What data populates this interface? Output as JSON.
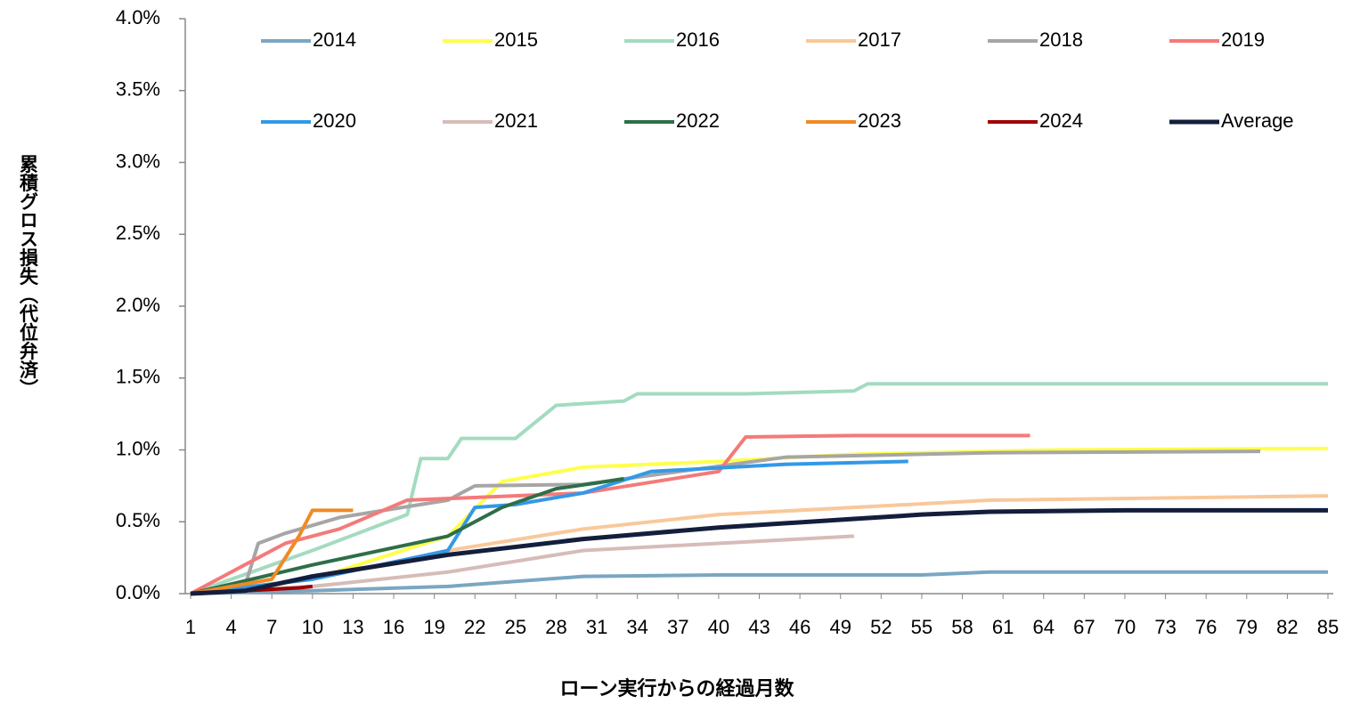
{
  "chart_data": {
    "type": "line",
    "ylabel": "累積グロス損失（代位弁済）",
    "xlabel": "ローン実行からの経過月数",
    "xlim": [
      1,
      85
    ],
    "xticks": [
      1,
      4,
      7,
      10,
      13,
      16,
      19,
      22,
      25,
      28,
      31,
      34,
      37,
      40,
      43,
      46,
      49,
      52,
      55,
      58,
      61,
      64,
      67,
      70,
      73,
      76,
      79,
      82,
      85
    ],
    "ylim": [
      0,
      4
    ],
    "yticks": [
      {
        "value": 0,
        "label": "0.0%"
      },
      {
        "value": 0.5,
        "label": "0.5%"
      },
      {
        "value": 1,
        "label": "1.0%"
      },
      {
        "value": 1.5,
        "label": "1.5%"
      },
      {
        "value": 2,
        "label": "2.0%"
      },
      {
        "value": 2.5,
        "label": "2.5%"
      },
      {
        "value": 3,
        "label": "3.0%"
      },
      {
        "value": 3.5,
        "label": "3.5%"
      },
      {
        "value": 4,
        "label": "4.0%"
      }
    ],
    "series": [
      {
        "name": "2014",
        "color": "#7aa6c2",
        "x": [
          1,
          10,
          20,
          30,
          40,
          55,
          60,
          85
        ],
        "values": [
          0,
          0.02,
          0.05,
          0.12,
          0.13,
          0.13,
          0.15,
          0.15
        ]
      },
      {
        "name": "2015",
        "color": "#ffff4d",
        "x": [
          1,
          10,
          20,
          24,
          30,
          40,
          50,
          65,
          85
        ],
        "values": [
          0,
          0.1,
          0.4,
          0.78,
          0.88,
          0.92,
          0.97,
          1.0,
          1.01
        ]
      },
      {
        "name": "2016",
        "color": "#a3dbc0",
        "x": [
          1,
          10,
          17,
          18,
          20,
          21,
          25,
          28,
          33,
          34,
          42,
          50,
          51,
          85
        ],
        "values": [
          0,
          0.3,
          0.55,
          0.94,
          0.94,
          1.08,
          1.08,
          1.31,
          1.34,
          1.39,
          1.39,
          1.41,
          1.46,
          1.46
        ]
      },
      {
        "name": "2017",
        "color": "#f9c89a",
        "x": [
          1,
          10,
          20,
          30,
          40,
          60,
          85
        ],
        "values": [
          0,
          0.1,
          0.3,
          0.45,
          0.55,
          0.65,
          0.68
        ]
      },
      {
        "name": "2018",
        "color": "#a6a6a6",
        "x": [
          1,
          5,
          6,
          8,
          12,
          20,
          22,
          30,
          45,
          60,
          80
        ],
        "values": [
          0,
          0.05,
          0.35,
          0.42,
          0.53,
          0.65,
          0.75,
          0.76,
          0.95,
          0.98,
          0.99
        ]
      },
      {
        "name": "2019",
        "color": "#f47a7a",
        "x": [
          1,
          5,
          8,
          12,
          17,
          30,
          40,
          42,
          50,
          63
        ],
        "values": [
          0,
          0.2,
          0.35,
          0.45,
          0.65,
          0.7,
          0.85,
          1.09,
          1.1,
          1.1
        ]
      },
      {
        "name": "2020",
        "color": "#3399e6",
        "x": [
          1,
          10,
          20,
          22,
          25,
          30,
          35,
          45,
          54
        ],
        "values": [
          0,
          0.1,
          0.3,
          0.6,
          0.62,
          0.7,
          0.85,
          0.9,
          0.92
        ]
      },
      {
        "name": "2021",
        "color": "#d6bcb8",
        "x": [
          1,
          10,
          20,
          30,
          40,
          50
        ],
        "values": [
          0,
          0.05,
          0.15,
          0.3,
          0.35,
          0.4
        ]
      },
      {
        "name": "2022",
        "color": "#2e6e48",
        "x": [
          1,
          10,
          20,
          24,
          28,
          31,
          33
        ],
        "values": [
          0,
          0.2,
          0.4,
          0.6,
          0.73,
          0.77,
          0.8
        ]
      },
      {
        "name": "2023",
        "color": "#f08a24",
        "x": [
          1,
          7,
          9,
          10,
          13
        ],
        "values": [
          0,
          0.1,
          0.4,
          0.58,
          0.58
        ]
      },
      {
        "name": "2024",
        "color": "#a00000",
        "x": [
          1,
          5,
          9,
          10
        ],
        "values": [
          0,
          0.02,
          0.04,
          0.05
        ]
      },
      {
        "name": "Average",
        "color": "#141e3c",
        "x": [
          1,
          5,
          10,
          20,
          30,
          40,
          50,
          55,
          60,
          70,
          85
        ],
        "values": [
          0,
          0.02,
          0.12,
          0.27,
          0.38,
          0.46,
          0.52,
          0.55,
          0.57,
          0.58,
          0.58
        ]
      }
    ]
  }
}
